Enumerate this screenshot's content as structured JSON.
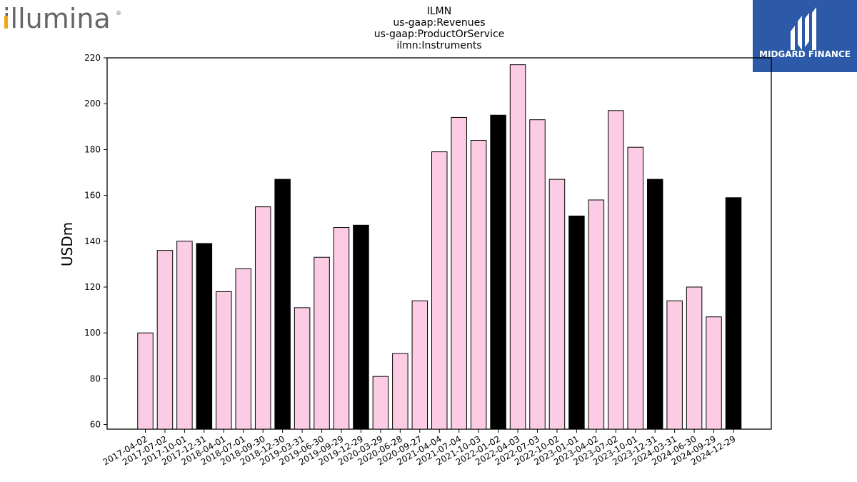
{
  "logo": {
    "wordmark": "illumina",
    "registered": "®"
  },
  "brand": {
    "name": "MIDGARD FINANCE",
    "bg_color": "#2d5aa8"
  },
  "chart_data": {
    "type": "bar",
    "title_lines": [
      "ILMN",
      "us-gaap:Revenues",
      "us-gaap:ProductOrService",
      "ilmn:Instruments"
    ],
    "xlabel": "",
    "ylabel": "USDm",
    "ylim": [
      58,
      220
    ],
    "yticks": [
      60,
      80,
      100,
      120,
      140,
      160,
      180,
      200,
      220
    ],
    "grid": false,
    "categories": [
      "2017-04-02",
      "2017-07-02",
      "2017-10-01",
      "2017-12-31",
      "2018-04-01",
      "2018-07-01",
      "2018-09-30",
      "2018-12-30",
      "2019-03-31",
      "2019-06-30",
      "2019-09-29",
      "2019-12-29",
      "2020-03-29",
      "2020-06-28",
      "2020-09-27",
      "2021-04-04",
      "2021-07-04",
      "2021-10-03",
      "2022-01-02",
      "2022-04-03",
      "2022-07-03",
      "2022-10-02",
      "2023-01-01",
      "2023-04-02",
      "2023-07-02",
      "2023-10-01",
      "2023-12-31",
      "2024-03-31",
      "2024-06-30",
      "2024-09-29",
      "2024-12-29"
    ],
    "values": [
      100,
      136,
      140,
      139,
      118,
      128,
      155,
      167,
      111,
      133,
      146,
      147,
      81,
      91,
      114,
      179,
      194,
      184,
      195,
      217,
      193,
      167,
      151,
      158,
      197,
      181,
      167,
      114,
      120,
      107,
      159
    ],
    "quarter_end_flags": [
      0,
      0,
      0,
      1,
      0,
      0,
      0,
      1,
      0,
      0,
      0,
      1,
      0,
      0,
      0,
      0,
      0,
      0,
      1,
      0,
      0,
      0,
      1,
      0,
      0,
      0,
      1,
      0,
      0,
      0,
      1
    ],
    "colors": {
      "regular": "#fccbe4",
      "fiscal_year_end": "#000000",
      "edge": "#000000"
    }
  }
}
